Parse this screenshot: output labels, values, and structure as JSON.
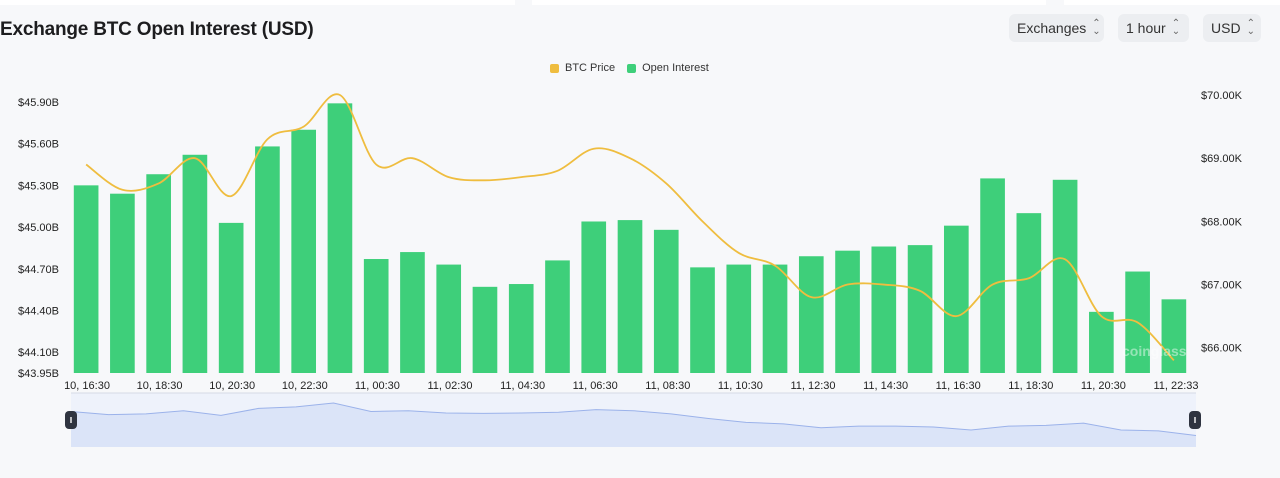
{
  "header": {
    "title": "Exchange BTC Open Interest (USD)",
    "exchanges_label": "Exchanges",
    "interval_label": "1 hour",
    "currency_label": "USD"
  },
  "watermark": "coinglass",
  "colors": {
    "bar": "#3ecf7a",
    "price": "#efbd3f",
    "navigator_fill": "#dbe4f8",
    "navigator_line": "#9bb2ea"
  },
  "chart_data": {
    "type": "bar",
    "legend_position": "top-center",
    "grid": false,
    "series": [
      {
        "name": "Open Interest",
        "type": "bar",
        "axis": "left",
        "values": [
          45.3,
          45.24,
          45.38,
          45.52,
          45.03,
          45.58,
          45.7,
          45.89,
          44.77,
          44.82,
          44.73,
          44.57,
          44.59,
          44.76,
          45.04,
          45.05,
          44.98,
          44.71,
          44.73,
          44.73,
          44.79,
          44.83,
          44.86,
          44.87,
          45.01,
          45.35,
          45.1,
          45.34,
          44.39,
          44.68,
          44.48
        ]
      },
      {
        "name": "BTC Price",
        "type": "line",
        "axis": "right",
        "values": [
          68.9,
          68.5,
          68.6,
          69.0,
          68.4,
          69.3,
          69.5,
          70.0,
          68.9,
          69.0,
          68.7,
          68.65,
          68.7,
          68.8,
          69.15,
          69.0,
          68.6,
          68.0,
          67.5,
          67.3,
          66.8,
          67.0,
          67.0,
          66.9,
          66.5,
          67.0,
          67.1,
          67.4,
          66.5,
          66.4,
          65.8
        ]
      }
    ],
    "x_tick_labels": [
      "10, 16:30",
      "10, 18:30",
      "10, 20:30",
      "10, 22:30",
      "11, 00:30",
      "11, 02:30",
      "11, 04:30",
      "11, 06:30",
      "11, 08:30",
      "11, 10:30",
      "11, 12:30",
      "11, 14:30",
      "11, 16:30",
      "11, 18:30",
      "11, 20:30",
      "11, 22:33"
    ],
    "left_axis": {
      "ticks": [
        43.95,
        44.1,
        44.4,
        44.7,
        45.0,
        45.3,
        45.6,
        45.9
      ],
      "labels": [
        "$43.95B",
        "$44.10B",
        "$44.40B",
        "$44.70B",
        "$45.00B",
        "$45.30B",
        "$45.60B",
        "$45.90B"
      ],
      "ylim": [
        43.95,
        45.95
      ]
    },
    "right_axis": {
      "ticks": [
        66,
        67,
        68,
        69,
        70
      ],
      "labels": [
        "$66.00K",
        "$67.00K",
        "$68.00K",
        "$69.00K",
        "$70.00K"
      ],
      "ylim": [
        65.6,
        70.0
      ]
    }
  }
}
